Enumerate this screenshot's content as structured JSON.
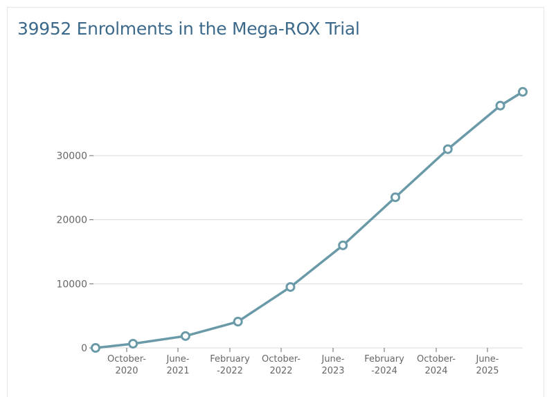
{
  "chart_data": {
    "type": "line",
    "title": "39952 Enrolments in the Mega-ROX Trial",
    "xlabel": "",
    "ylabel": "",
    "ylim": [
      0,
      42000
    ],
    "yticks": [
      0,
      10000,
      20000,
      30000
    ],
    "grid": true,
    "x_tick_labels": [
      [
        "October-",
        "2020"
      ],
      [
        "June-",
        "2021"
      ],
      [
        "February",
        "-2022"
      ],
      [
        "October-",
        "2022"
      ],
      [
        "June-",
        "2023"
      ],
      [
        "February",
        "-2024"
      ],
      [
        "October-",
        "2024"
      ],
      [
        "June-",
        "2025"
      ]
    ],
    "series": [
      {
        "x": [
          "2020-06",
          "2020-11",
          "2021-06",
          "2022-01",
          "2022-08",
          "2023-03",
          "2023-10",
          "2024-05",
          "2024-12",
          "2025-03"
        ],
        "values": [
          0,
          650,
          1850,
          4100,
          9500,
          16000,
          23500,
          31000,
          37800,
          39952
        ]
      }
    ],
    "colors": {
      "line": "#6a9aa8",
      "grid": "#d9d9d9",
      "text": "#666666",
      "title": "#3d6a8a"
    }
  }
}
